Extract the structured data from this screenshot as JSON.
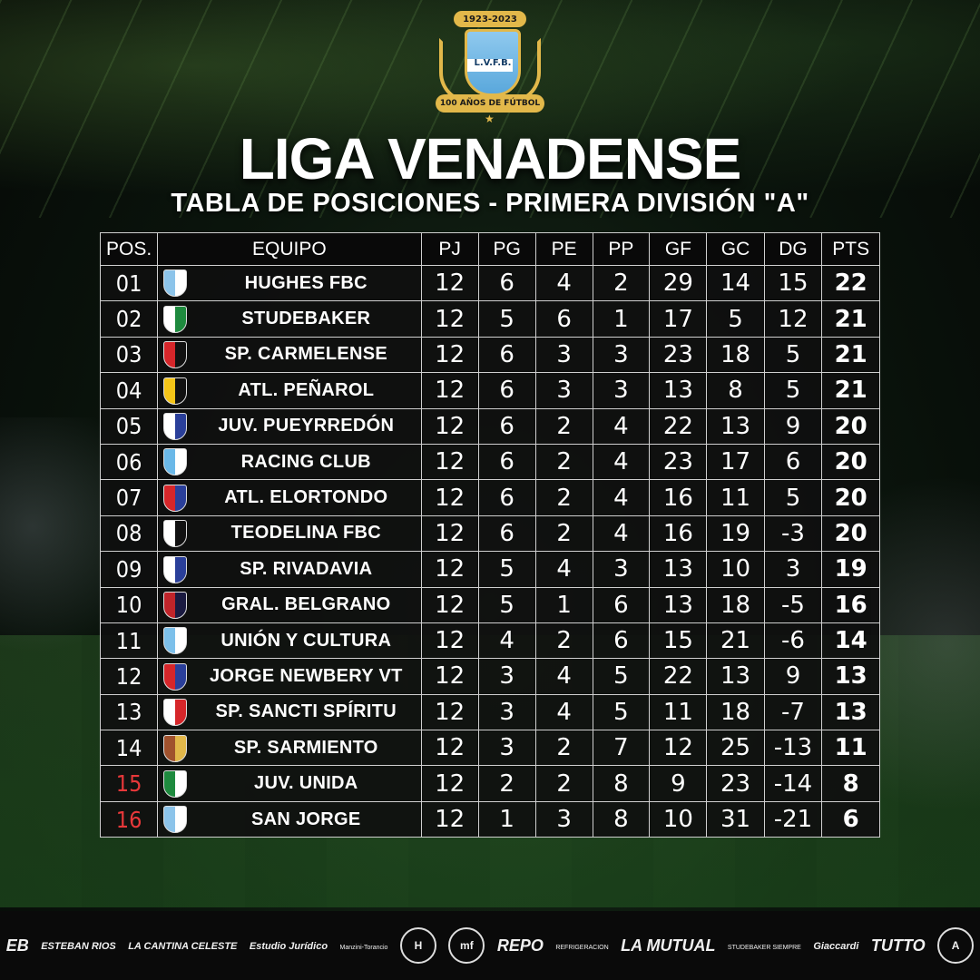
{
  "logo": {
    "years": "1923-2023",
    "initials": "L.V.F.B.",
    "ribbon": "100 AÑOS DE FÚTBOL"
  },
  "title": "LIGA VENADENSE",
  "subtitle": "TABLA DE POSICIONES - PRIMERA DIVISIÓN \"A\"",
  "table": {
    "headers": {
      "pos": "POS.",
      "team": "EQUIPO",
      "pj": "PJ",
      "pg": "PG",
      "pe": "PE",
      "pp": "PP",
      "gf": "GF",
      "gc": "GC",
      "dg": "DG",
      "pts": "PTS"
    },
    "rows": [
      {
        "pos": "01",
        "team": "HUGHES FBC",
        "pj": "12",
        "pg": "6",
        "pe": "4",
        "pp": "2",
        "gf": "29",
        "gc": "14",
        "dg": "15",
        "pts": "22",
        "crest": "#8cc4ea",
        "crest2": "#ffffff"
      },
      {
        "pos": "02",
        "team": "STUDEBAKER",
        "pj": "12",
        "pg": "5",
        "pe": "6",
        "pp": "1",
        "gf": "17",
        "gc": "5",
        "dg": "12",
        "pts": "21",
        "crest": "#ffffff",
        "crest2": "#1e8a3e"
      },
      {
        "pos": "03",
        "team": "SP. CARMELENSE",
        "pj": "12",
        "pg": "6",
        "pe": "3",
        "pp": "3",
        "gf": "23",
        "gc": "18",
        "dg": "5",
        "pts": "21",
        "crest": "#d6262a",
        "crest2": "#111111"
      },
      {
        "pos": "04",
        "team": "ATL. PEÑAROL",
        "pj": "12",
        "pg": "6",
        "pe": "3",
        "pp": "3",
        "gf": "13",
        "gc": "8",
        "dg": "5",
        "pts": "21",
        "crest": "#f5c518",
        "crest2": "#111111"
      },
      {
        "pos": "05",
        "team": "JUV. PUEYRREDÓN",
        "pj": "12",
        "pg": "6",
        "pe": "2",
        "pp": "4",
        "gf": "22",
        "gc": "13",
        "dg": "9",
        "pts": "20",
        "crest": "#ffffff",
        "crest2": "#2a3f9a"
      },
      {
        "pos": "06",
        "team": "RACING CLUB",
        "pj": "12",
        "pg": "6",
        "pe": "2",
        "pp": "4",
        "gf": "23",
        "gc": "17",
        "dg": "6",
        "pts": "20",
        "crest": "#6ab8e8",
        "crest2": "#ffffff"
      },
      {
        "pos": "07",
        "team": "ATL. ELORTONDO",
        "pj": "12",
        "pg": "6",
        "pe": "2",
        "pp": "4",
        "gf": "16",
        "gc": "11",
        "dg": "5",
        "pts": "20",
        "crest": "#d6262a",
        "crest2": "#2a3f9a"
      },
      {
        "pos": "08",
        "team": "TEODELINA FBC",
        "pj": "12",
        "pg": "6",
        "pe": "2",
        "pp": "4",
        "gf": "16",
        "gc": "19",
        "dg": "-3",
        "pts": "20",
        "crest": "#ffffff",
        "crest2": "#111111"
      },
      {
        "pos": "09",
        "team": "SP. RIVADAVIA",
        "pj": "12",
        "pg": "5",
        "pe": "4",
        "pp": "3",
        "gf": "13",
        "gc": "10",
        "dg": "3",
        "pts": "19",
        "crest": "#ffffff",
        "crest2": "#2a3f9a"
      },
      {
        "pos": "10",
        "team": "GRAL. BELGRANO",
        "pj": "12",
        "pg": "5",
        "pe": "1",
        "pp": "6",
        "gf": "13",
        "gc": "18",
        "dg": "-5",
        "pts": "16",
        "crest": "#c0242a",
        "crest2": "#1a1a40"
      },
      {
        "pos": "11",
        "team": "UNIÓN Y CULTURA",
        "pj": "12",
        "pg": "4",
        "pe": "2",
        "pp": "6",
        "gf": "15",
        "gc": "21",
        "dg": "-6",
        "pts": "14",
        "crest": "#7cc0ea",
        "crest2": "#ffffff"
      },
      {
        "pos": "12",
        "team": "JORGE NEWBERY VT",
        "pj": "12",
        "pg": "3",
        "pe": "4",
        "pp": "5",
        "gf": "22",
        "gc": "13",
        "dg": "9",
        "pts": "13",
        "crest": "#d6262a",
        "crest2": "#2a3f9a"
      },
      {
        "pos": "13",
        "team": "SP. SANCTI SPÍRITU",
        "pj": "12",
        "pg": "3",
        "pe": "4",
        "pp": "5",
        "gf": "11",
        "gc": "18",
        "dg": "-7",
        "pts": "13",
        "crest": "#ffffff",
        "crest2": "#d6262a"
      },
      {
        "pos": "14",
        "team": "SP. SARMIENTO",
        "pj": "12",
        "pg": "3",
        "pe": "2",
        "pp": "7",
        "gf": "12",
        "gc": "25",
        "dg": "-13",
        "pts": "11",
        "crest": "#a0522d",
        "crest2": "#e2b84a"
      },
      {
        "pos": "15",
        "team": "JUV. UNIDA",
        "pj": "12",
        "pg": "2",
        "pe": "2",
        "pp": "8",
        "gf": "9",
        "gc": "23",
        "dg": "-14",
        "pts": "8",
        "crest": "#1e8a3e",
        "crest2": "#ffffff",
        "relegation": true
      },
      {
        "pos": "16",
        "team": "SAN JORGE",
        "pj": "12",
        "pg": "1",
        "pe": "3",
        "pp": "8",
        "gf": "10",
        "gc": "31",
        "dg": "-21",
        "pts": "6",
        "crest": "#8cc4ea",
        "crest2": "#ffffff",
        "relegation": true
      }
    ]
  },
  "colors": {
    "relegation": "#e8383a",
    "gold": "#e2b84a"
  },
  "sponsors": [
    {
      "label": "EB",
      "kind": "big"
    },
    {
      "label": "ESTEBAN RIOS",
      "kind": "text"
    },
    {
      "label": "LA CANTINA CELESTE",
      "kind": "text"
    },
    {
      "label": "Estudio Jurídico",
      "kind": "text"
    },
    {
      "label": "Manzini-Torancio",
      "kind": "tiny"
    },
    {
      "label": "H",
      "kind": "circle"
    },
    {
      "label": "mf",
      "kind": "circle"
    },
    {
      "label": "REPO",
      "kind": "big"
    },
    {
      "label": "REFRIGERACION",
      "kind": "tiny"
    },
    {
      "label": "LA MUTUAL",
      "kind": "big"
    },
    {
      "label": "STUDEBAKER SIEMPRE",
      "kind": "tiny"
    },
    {
      "label": "Giaccardi",
      "kind": "text"
    },
    {
      "label": "TUTTO",
      "kind": "big"
    },
    {
      "label": "A",
      "kind": "circle"
    }
  ]
}
